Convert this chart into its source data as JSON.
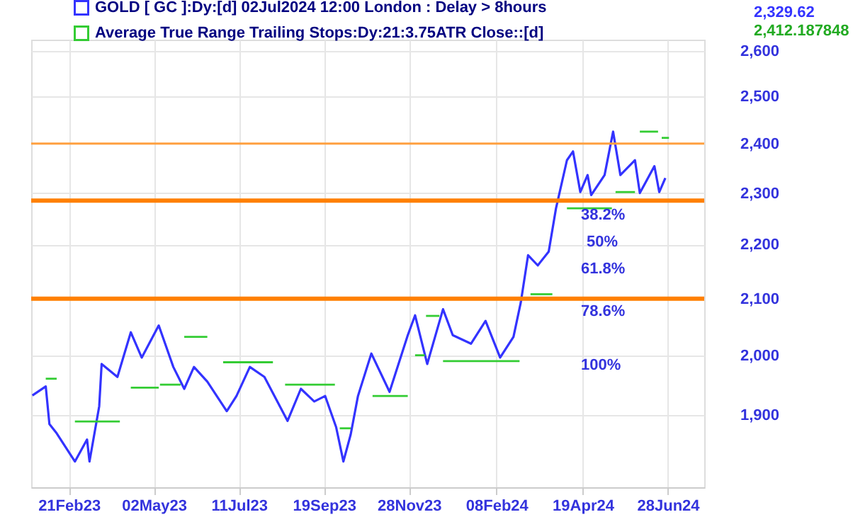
{
  "chart_data": {
    "type": "line",
    "series": [
      {
        "name": "GOLD [ GC ]:Dy:[d]  02Jul2024 12:00 London : Delay > 8hours",
        "color": "#3333ff",
        "x": [
          "2023-01-22",
          "2023-02-02",
          "2023-02-05",
          "2023-02-11",
          "2023-02-26",
          "2023-03-08",
          "2023-03-10",
          "2023-03-18",
          "2023-03-20",
          "2023-04-02",
          "2023-04-13",
          "2023-04-22",
          "2023-05-06",
          "2023-05-18",
          "2023-05-27",
          "2023-06-04",
          "2023-06-15",
          "2023-07-01",
          "2023-07-09",
          "2023-07-20",
          "2023-08-01",
          "2023-08-20",
          "2023-08-31",
          "2023-09-11",
          "2023-09-20",
          "2023-09-29",
          "2023-10-05",
          "2023-10-11",
          "2023-10-17",
          "2023-10-28",
          "2023-11-12",
          "2023-11-27",
          "2023-12-03",
          "2023-12-13",
          "2023-12-26",
          "2024-01-03",
          "2024-01-18",
          "2024-01-30",
          "2024-02-11",
          "2024-02-22",
          "2024-02-28",
          "2024-03-05",
          "2024-03-13",
          "2024-03-22",
          "2024-03-28",
          "2024-04-06",
          "2024-04-11",
          "2024-04-17",
          "2024-04-23",
          "2024-04-26",
          "2024-05-07",
          "2024-05-14",
          "2024-05-20",
          "2024-06-01",
          "2024-06-05",
          "2024-06-17",
          "2024-06-21",
          "2024-06-26"
        ],
        "values": [
          1932,
          1947,
          1885,
          1870,
          1825,
          1860,
          1825,
          1914,
          1985,
          1963,
          2040,
          1996,
          2052,
          1980,
          1943,
          1980,
          1955,
          1906,
          1931,
          1980,
          1963,
          1890,
          1943,
          1922,
          1931,
          1880,
          1825,
          1868,
          1931,
          2003,
          1938,
          2035,
          2070,
          1985,
          2081,
          2035,
          2020,
          2060,
          1996,
          2032,
          2093,
          2180,
          2161,
          2187,
          2270,
          2366,
          2384,
          2302,
          2336,
          2296,
          2336,
          2425,
          2336,
          2366,
          2300,
          2354,
          2302,
          2330
        ]
      },
      {
        "name": "Average True Range Trailing Stops:Dy:21:3.75ATR Close::[d]",
        "color": "#33cc33",
        "x": [
          "2023-02-02",
          "2023-02-11",
          null,
          "2023-02-26",
          "2023-04-04",
          null,
          "2023-04-13",
          "2023-05-06",
          null,
          "2023-05-07",
          "2023-05-24",
          null,
          "2023-05-27",
          "2023-06-15",
          null,
          "2023-06-28",
          "2023-08-08",
          null,
          "2023-08-18",
          "2023-09-28",
          null,
          "2023-10-02",
          "2023-10-11",
          null,
          "2023-10-29",
          "2023-11-27",
          null,
          "2023-12-03",
          "2023-12-11",
          null,
          "2023-12-12",
          "2023-12-23",
          null,
          "2023-12-26",
          "2024-02-27",
          null,
          "2024-03-07",
          "2024-03-25",
          null,
          "2024-04-06",
          "2024-05-13",
          null,
          "2024-05-16",
          "2024-06-01",
          null,
          "2024-06-05",
          "2024-06-20",
          null,
          "2024-06-23",
          "2024-06-29"
        ],
        "values": [
          1960,
          1960,
          null,
          1889,
          1889,
          null,
          1945,
          1945,
          null,
          1950,
          1950,
          null,
          2032,
          2032,
          null,
          1988,
          1988,
          null,
          1950,
          1950,
          null,
          1878,
          1878,
          null,
          1931,
          1931,
          null,
          2000,
          2000,
          null,
          2069,
          2069,
          null,
          1990,
          1990,
          null,
          2108,
          2108,
          null,
          2270,
          2270,
          null,
          2302,
          2302,
          null,
          2425,
          2425,
          null,
          2412,
          2412
        ]
      }
    ],
    "log": "y",
    "ylim": [
      1785,
      2625
    ],
    "yticks": [
      {
        "value": 1900,
        "label": "1,900"
      },
      {
        "value": 2000,
        "label": "2,000"
      },
      {
        "value": 2100,
        "label": "2,100"
      },
      {
        "value": 2200,
        "label": "2,200"
      },
      {
        "value": 2300,
        "label": "2,300"
      },
      {
        "value": 2400,
        "label": "2,400"
      },
      {
        "value": 2500,
        "label": "2,500"
      },
      {
        "value": 2600,
        "label": "2,600"
      }
    ],
    "xlim": [
      "2023-01-21",
      "2024-07-28"
    ],
    "xticks": [
      {
        "value": "2023-02-21",
        "label": "21Feb23"
      },
      {
        "value": "2023-05-02",
        "label": "02May23"
      },
      {
        "value": "2023-07-11",
        "label": "11Jul23"
      },
      {
        "value": "2023-09-19",
        "label": "19Sep23"
      },
      {
        "value": "2023-11-28",
        "label": "28Nov23"
      },
      {
        "value": "2024-02-08",
        "label": "08Feb24"
      },
      {
        "value": "2024-04-19",
        "label": "19Apr24"
      },
      {
        "value": "2024-06-28",
        "label": "28Jun24"
      }
    ],
    "ref_lines": [
      {
        "axis": "y",
        "value": 2100,
        "color": "#ff8000",
        "line_style": "solid"
      },
      {
        "axis": "y",
        "value": 2285,
        "color": "#ff8000",
        "line_style": "solid"
      },
      {
        "axis": "y",
        "value": 2400,
        "color": "#ffa040",
        "line_style": "solid"
      }
    ],
    "annotations": [
      "38.2%",
      "50%",
      "61.8%",
      "78.6%",
      "100%",
      "2,329.62",
      "2,412.187848"
    ],
    "grid": true,
    "legend": "top left",
    "marker": "none"
  }
}
